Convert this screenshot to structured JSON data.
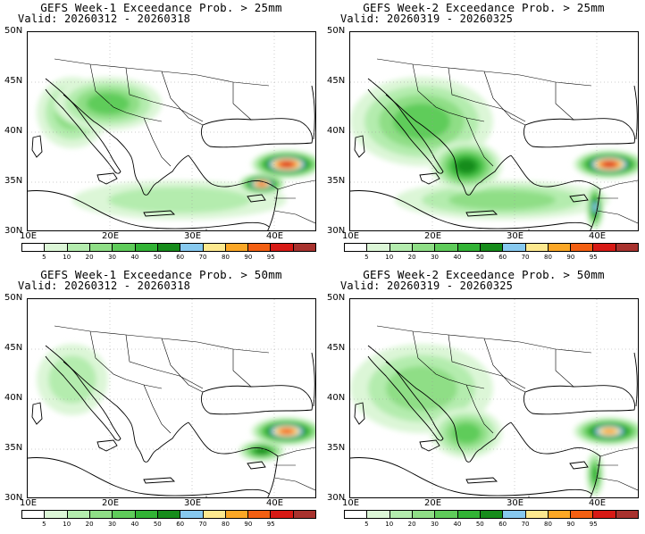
{
  "panels": [
    {
      "title": "GEFS Week-1 Exceedance Prob. > 25mm",
      "valid": "Valid: 20260312 - 20260318",
      "week": 1,
      "threshold_mm": 25,
      "precip_features": [
        {
          "region": "southeast-turkey-highlands",
          "category_percent": 95
        },
        {
          "region": "northeast-mediterranean-coast",
          "category_percent": 90
        },
        {
          "region": "balkans",
          "category_percent": 30
        },
        {
          "region": "italy-adriatic",
          "category_percent": 20
        },
        {
          "region": "eastern-mediterranean-sea",
          "category_percent": 10
        }
      ]
    },
    {
      "title": "GEFS Week-2 Exceedance Prob. > 25mm",
      "valid": "Valid: 20260319 - 20260325",
      "week": 2,
      "threshold_mm": 25,
      "precip_features": [
        {
          "region": "southeast-turkey-highlands",
          "category_percent": 95
        },
        {
          "region": "levant-coast",
          "category_percent": 60
        },
        {
          "region": "aegean-greece",
          "category_percent": 50
        },
        {
          "region": "balkans-italy",
          "category_percent": 30
        },
        {
          "region": "eastern-mediterranean-sea",
          "category_percent": 20
        }
      ]
    },
    {
      "title": "GEFS Week-1 Exceedance Prob. > 50mm",
      "valid": "Valid: 20260312 - 20260318",
      "week": 1,
      "threshold_mm": 50,
      "precip_features": [
        {
          "region": "southeast-turkey-highlands",
          "category_percent": 90
        },
        {
          "region": "northeast-mediterranean-coast",
          "category_percent": 50
        },
        {
          "region": "italy-adriatic",
          "category_percent": 10
        }
      ]
    },
    {
      "title": "GEFS Week-2 Exceedance Prob. > 50mm",
      "valid": "Valid: 20260319 - 20260325",
      "week": 2,
      "threshold_mm": 50,
      "precip_features": [
        {
          "region": "southeast-turkey-highlands",
          "category_percent": 80
        },
        {
          "region": "levant-coast",
          "category_percent": 40
        },
        {
          "region": "aegean-greece",
          "category_percent": 30
        },
        {
          "region": "balkans-italy",
          "category_percent": 20
        }
      ]
    }
  ],
  "axes": {
    "lat_labels": [
      "50N",
      "45N",
      "40N",
      "35N",
      "30N"
    ],
    "lon_labels": [
      "10E",
      "20E",
      "30E",
      "40E"
    ],
    "lat_range": [
      30,
      50
    ],
    "lon_range": [
      10,
      45
    ]
  },
  "colorbar": {
    "labels": [
      "5",
      "10",
      "20",
      "30",
      "40",
      "50",
      "60",
      "70",
      "80",
      "90",
      "95"
    ],
    "colors": [
      "#ffffff",
      "#dcf6d7",
      "#b4ecae",
      "#8fde86",
      "#5fcc5a",
      "#32b335",
      "#168c1b",
      "#87c9ef",
      "#fde98f",
      "#fba726",
      "#f35f12",
      "#d71a15",
      "#a8322e"
    ]
  }
}
